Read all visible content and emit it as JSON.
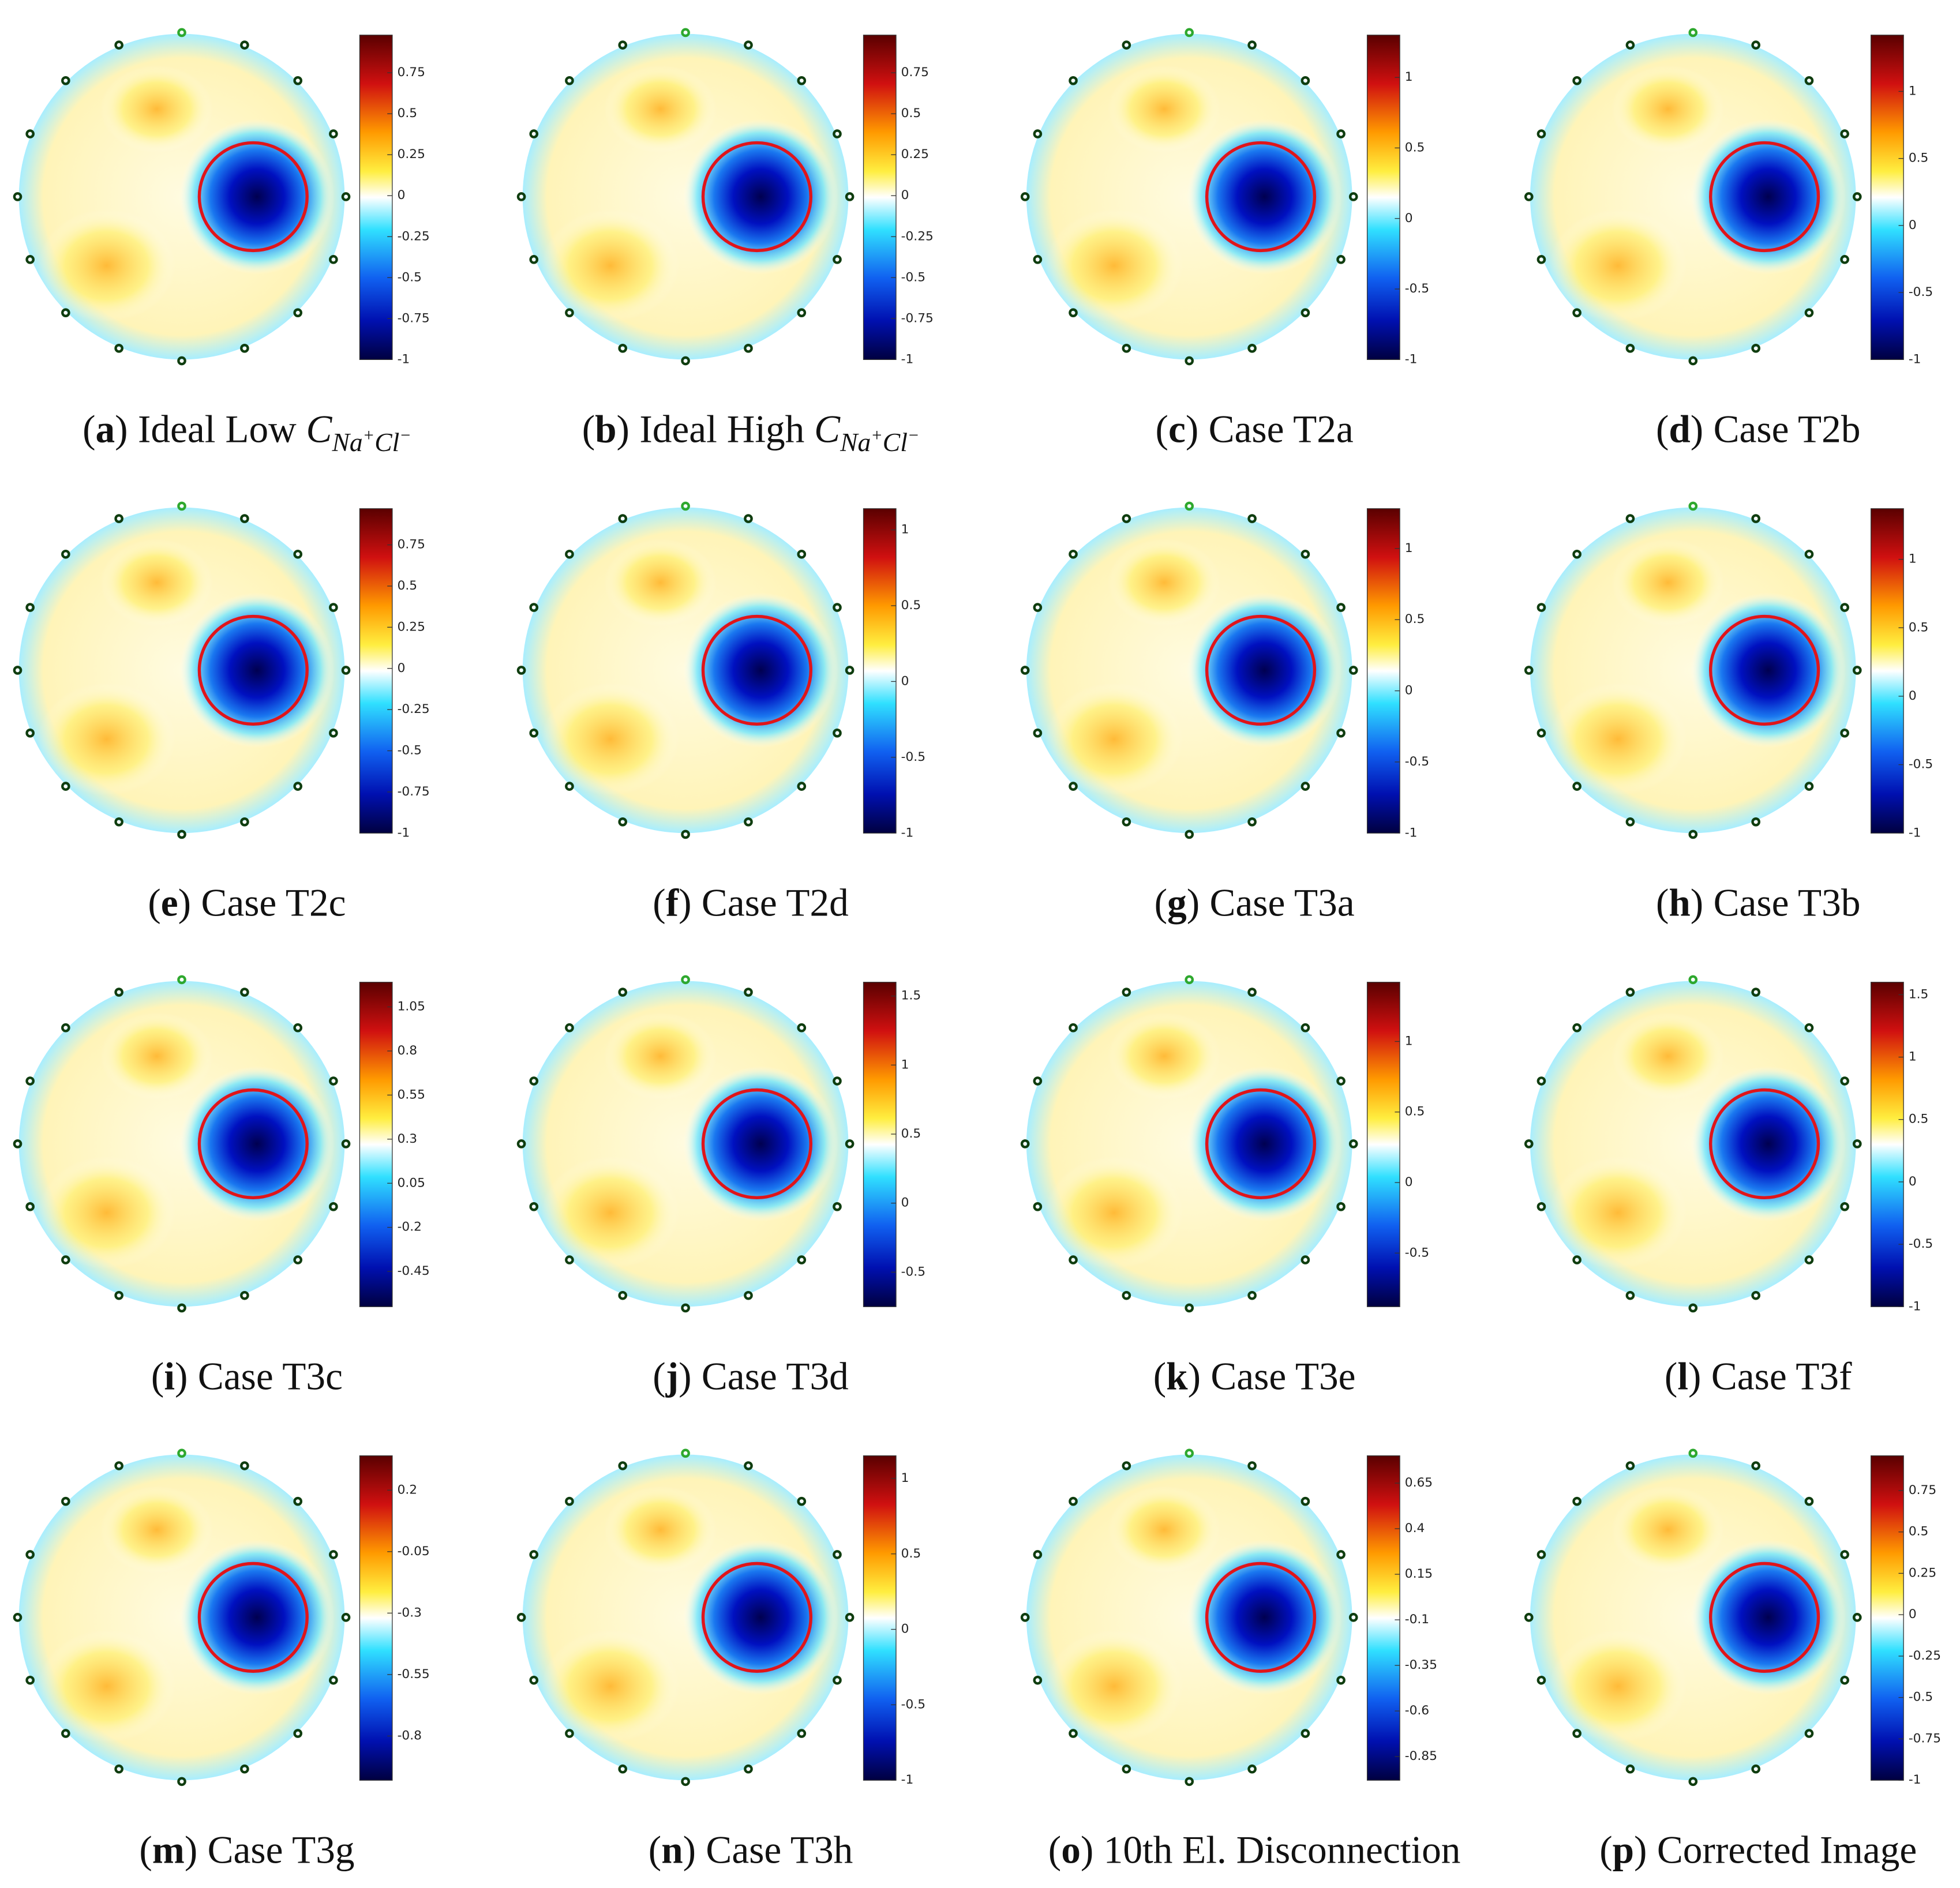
{
  "bracket": [
    "(",
    ")"
  ],
  "panels": [
    {
      "letter": "a",
      "caption": "Ideal Low ",
      "symbol": "C",
      "subscript": [
        "Na",
        "+",
        "Cl",
        "−"
      ],
      "clim": [
        -1,
        0.98
      ],
      "ticks": [
        0.75,
        0.5,
        0.25,
        0,
        -0.25,
        -0.5,
        -0.75,
        -1
      ]
    },
    {
      "letter": "b",
      "caption": "Ideal High ",
      "symbol": "C",
      "subscript": [
        "Na",
        "+",
        "Cl",
        "−"
      ],
      "clim": [
        -1,
        0.98
      ],
      "ticks": [
        0.75,
        0.5,
        0.25,
        0,
        -0.25,
        -0.5,
        -0.75,
        -1
      ]
    },
    {
      "letter": "c",
      "caption": "Case T2a",
      "clim": [
        -1,
        1.3
      ],
      "ticks": [
        1,
        0.5,
        0,
        -0.5,
        -1
      ]
    },
    {
      "letter": "d",
      "caption": "Case T2b",
      "clim": [
        -1,
        1.42
      ],
      "ticks": [
        1,
        0.5,
        0,
        -0.5,
        -1
      ]
    },
    {
      "letter": "e",
      "caption": "Case T2c",
      "clim": [
        -1,
        0.97
      ],
      "ticks": [
        0.75,
        0.5,
        0.25,
        0,
        -0.25,
        -0.5,
        -0.75,
        -1
      ]
    },
    {
      "letter": "f",
      "caption": "Case T2d",
      "clim": [
        -1,
        1.14
      ],
      "ticks": [
        1,
        0.5,
        0,
        -0.5,
        -1
      ]
    },
    {
      "letter": "g",
      "caption": "Case T3a",
      "clim": [
        -1,
        1.28
      ],
      "ticks": [
        1,
        0.5,
        0,
        -0.5,
        -1
      ]
    },
    {
      "letter": "h",
      "caption": "Case T3b",
      "clim": [
        -1,
        1.37
      ],
      "ticks": [
        1,
        0.5,
        0,
        -0.5,
        -1
      ]
    },
    {
      "letter": "i",
      "caption": "Case T3c",
      "clim": [
        -0.65,
        1.19
      ],
      "ticks": [
        1.05,
        0.8,
        0.55,
        0.3,
        0.05,
        -0.2,
        -0.45
      ]
    },
    {
      "letter": "j",
      "caption": "Case T3d",
      "clim": [
        -0.75,
        1.6
      ],
      "ticks": [
        1.5,
        1,
        0.5,
        0,
        -0.5
      ]
    },
    {
      "letter": "k",
      "caption": "Case T3e",
      "clim": [
        -0.88,
        1.42
      ],
      "ticks": [
        1,
        0.5,
        0,
        -0.5
      ]
    },
    {
      "letter": "l",
      "caption": "Case T3f",
      "clim": [
        -1,
        1.6
      ],
      "ticks": [
        1.5,
        1,
        0.5,
        0,
        -0.5,
        -1
      ]
    },
    {
      "letter": "m",
      "caption": "Case T3g",
      "clim": [
        -0.98,
        0.34
      ],
      "ticks": [
        0.2,
        -0.05,
        -0.3,
        -0.55,
        -0.8
      ]
    },
    {
      "letter": "n",
      "caption": "Case T3h",
      "clim": [
        -1,
        1.15
      ],
      "ticks": [
        1,
        0.5,
        0,
        -0.5,
        -1
      ]
    },
    {
      "letter": "o",
      "caption": "10th El. Disconnection",
      "clim": [
        -0.98,
        0.8
      ],
      "ticks": [
        0.65,
        0.4,
        0.15,
        -0.1,
        -0.35,
        -0.6,
        -0.85
      ]
    },
    {
      "letter": "p",
      "caption": "Corrected Image",
      "clim": [
        -1,
        0.96
      ],
      "ticks": [
        0.75,
        0.5,
        0.25,
        0,
        -0.25,
        -0.5,
        -0.75,
        -1
      ]
    }
  ]
}
